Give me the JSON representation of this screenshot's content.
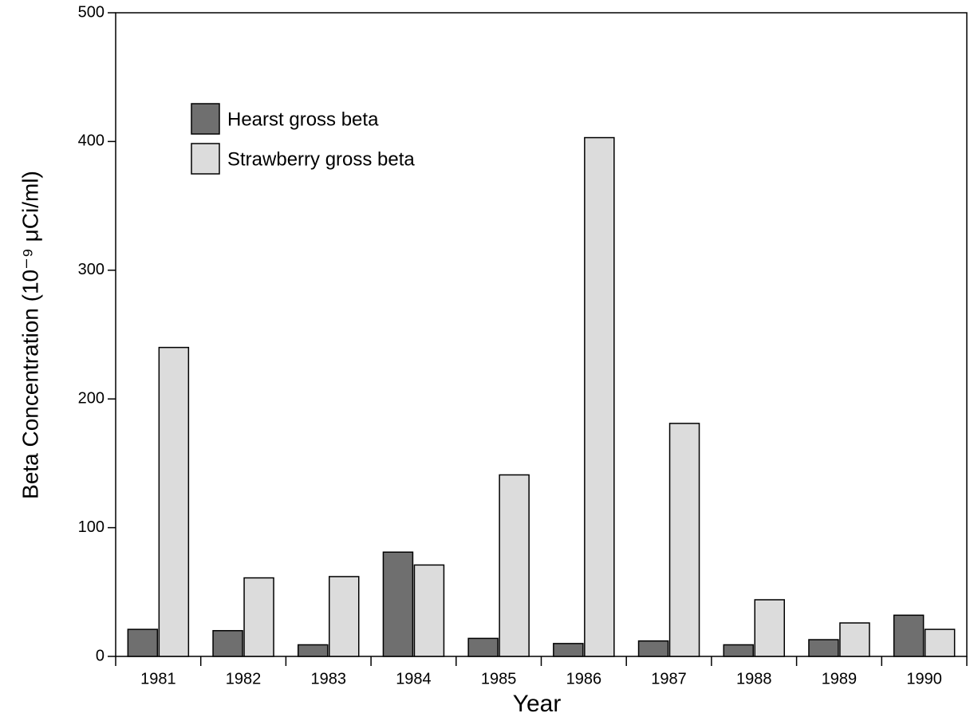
{
  "chart_data": {
    "type": "bar",
    "x_label": "Year",
    "y_label": "Beta Concentration (10⁻⁹ μCi/ml)",
    "categories": [
      "1981",
      "1982",
      "1983",
      "1984",
      "1985",
      "1986",
      "1987",
      "1988",
      "1989",
      "1990"
    ],
    "series": [
      {
        "name": "Hearst gross beta",
        "color": "#6f6f6f",
        "values": [
          21,
          20,
          9,
          81,
          14,
          10,
          12,
          9,
          13,
          32
        ]
      },
      {
        "name": "Strawberry gross beta",
        "color": "#dcdcdc",
        "values": [
          240,
          61,
          62,
          71,
          141,
          403,
          181,
          44,
          26,
          21
        ]
      }
    ],
    "ylim": [
      0,
      500
    ],
    "yticks": [
      0,
      100,
      200,
      300,
      400,
      500
    ],
    "grid": false,
    "legend": "upper left"
  }
}
